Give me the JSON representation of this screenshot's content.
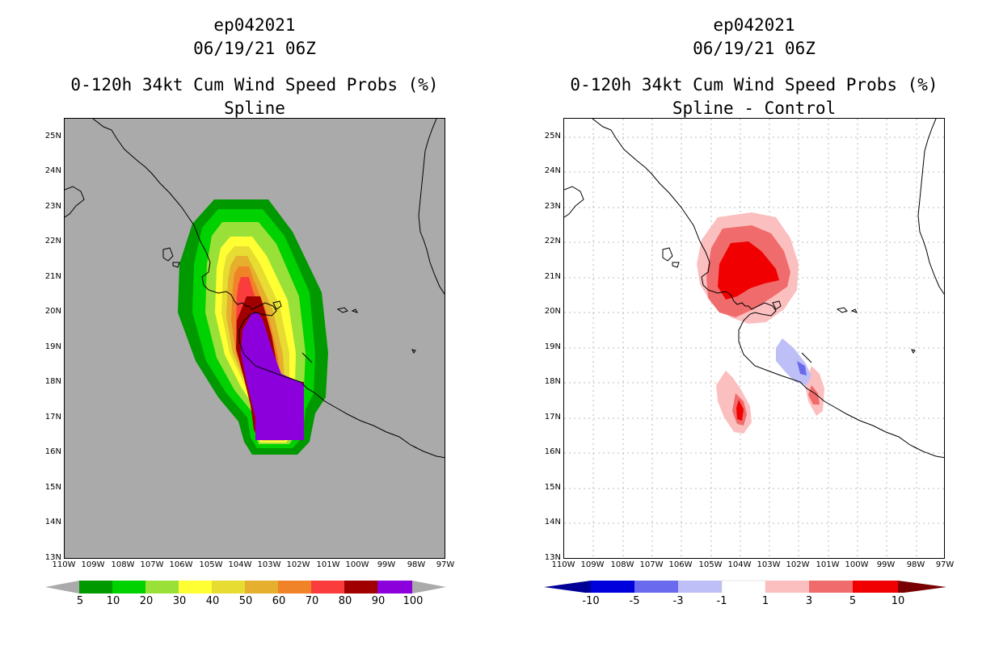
{
  "left_panel": {
    "title_lines": [
      "ep042021",
      "06/19/21 06Z",
      "0-120h 34kt Cum Wind Speed Probs (%)",
      "Spline"
    ],
    "colorbar": {
      "colors": [
        "#009900",
        "#00d100",
        "#99e138",
        "#ffff33",
        "#e6dc32",
        "#e6af2d",
        "#f08228",
        "#fa3c3c",
        "#a00000",
        "#8c00dc"
      ],
      "labels": [
        "5",
        "10",
        "20",
        "30",
        "40",
        "50",
        "60",
        "70",
        "80",
        "90",
        "100"
      ],
      "arrow_color": "#aaaaaa"
    }
  },
  "right_panel": {
    "title_lines": [
      "ep042021",
      "06/19/21 06Z",
      "0-120h 34kt Cum Wind Speed Probs (%)",
      "Spline - Control"
    ],
    "colorbar": {
      "colors": [
        "#0000dc",
        "#6a6aee",
        "#bfbff7",
        "#ffffff",
        "#fbbfbf",
        "#f06b6b",
        "#f00000"
      ],
      "labels": [
        "-10",
        "-5",
        "-3",
        "-1",
        "1",
        "3",
        "5",
        "10"
      ],
      "arrow_left": "#000096",
      "arrow_right": "#780000"
    }
  },
  "lat_labels": [
    "25N",
    "24N",
    "23N",
    "22N",
    "21N",
    "20N",
    "19N",
    "18N",
    "17N",
    "16N",
    "15N",
    "14N",
    "13N"
  ],
  "lon_labels": [
    "110W",
    "109W",
    "108W",
    "107W",
    "106W",
    "105W",
    "104W",
    "103W",
    "102W",
    "101W",
    "100W",
    "99W",
    "98W",
    "97W"
  ],
  "colors": {
    "land_ocean_left": "#aaaaaa",
    "coastline": "#000000",
    "grid": "#bbbbbb"
  }
}
